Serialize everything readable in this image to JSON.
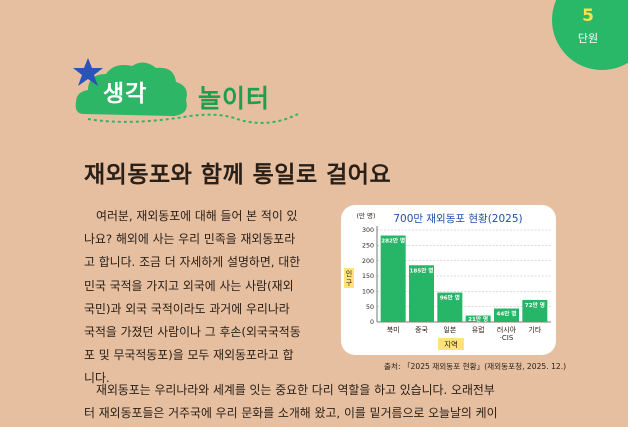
{
  "unit": {
    "number": "5",
    "label": "단원"
  },
  "section": {
    "badge": "생각",
    "title": "놀이터"
  },
  "article": {
    "title": "재외동포와 함께 통일로 걸어요",
    "para1_lines": [
      "여러분, 재외동포에 대해 들어 본 적이 있",
      "나요? 해외에 사는 우리 민족을 재외동포라",
      "고 합니다. 조금 더 자세하게 설명하면, 대한",
      "민국 국적을 가지고 외국에 사는 사람(재외",
      "국민)과 외국 국적이라도 과거에 우리나라",
      "국적을 가졌던 사람이나 그 후손(외국국적동",
      "포 및 무국적동포)을 모두 재외동포라고 합",
      "니다."
    ],
    "para2_lines": [
      "재외동포는 우리나라와 세계를 잇는 중요한 다리 역할을 하고 있습니다. 오래전부",
      "터 재외동포들은 거주국에 우리 문화를 소개해 왔고, 이를 밑거름으로 오늘날의 케이"
    ]
  },
  "chart_data": {
    "type": "bar",
    "title": "700만 재외동포 현황(2025)",
    "unit_label": "(만 명)",
    "ylabel": "인구",
    "xlabel": "지역",
    "categories": [
      "북미",
      "중국",
      "일본",
      "유럽",
      "러시아·CIS",
      "기타"
    ],
    "values": [
      282,
      185,
      96,
      21,
      44,
      72
    ],
    "value_labels": [
      "282만 명",
      "185만 명",
      "96만 명",
      "21만 명",
      "44만 명",
      "72만 명"
    ],
    "yticks": [
      0,
      50,
      100,
      150,
      200,
      250,
      300
    ],
    "ylim": [
      0,
      300
    ],
    "grid": true,
    "bar_color": "#27b567",
    "source": "출처: 「2025 재외동포 현황」(재외동포청, 2025. 12.)"
  }
}
